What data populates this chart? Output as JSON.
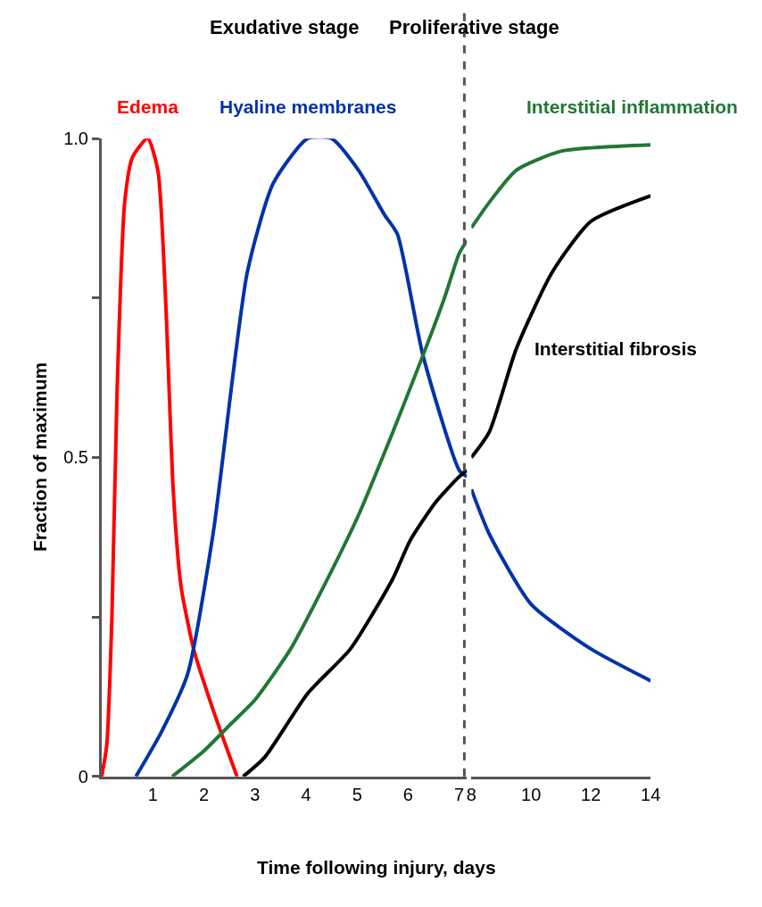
{
  "chart_data": [
    {
      "type": "line",
      "ylabel": "Fraction of maximum",
      "xlabel": "Time following injury, days",
      "annotations": [
        "Exudative stage"
      ],
      "xlim": [
        0,
        7.15
      ],
      "xticks": [
        1,
        2,
        3,
        4,
        5,
        6,
        7
      ],
      "ylim": [
        0,
        1
      ],
      "yticks": [
        0,
        {
          "value": 0.25,
          "label": null
        },
        {
          "value": 0.5,
          "label": "0.5"
        },
        {
          "value": 0.75,
          "label": null
        },
        {
          "value": 1,
          "label": "1.0"
        }
      ],
      "grid": false,
      "legend": false,
      "ref_lines": [
        {
          "axis": "x",
          "value": 7.1,
          "label": null,
          "color": "#555555",
          "line_style": "dashed"
        }
      ],
      "series": [
        {
          "name": "Edema",
          "color": "#ff0000",
          "x": [
            0,
            0.1,
            0.2,
            0.3,
            0.45,
            0.6,
            0.9,
            1.1,
            1.25,
            1.4,
            1.55,
            1.8,
            2.2,
            2.65
          ],
          "values": [
            0,
            0.05,
            0.25,
            0.6,
            0.9,
            0.97,
            1.0,
            0.95,
            0.75,
            0.45,
            0.3,
            0.2,
            0.1,
            0
          ]
        },
        {
          "name": "Hyaline membranes",
          "color": "#0033aa",
          "x": [
            0.67,
            1.17,
            1.68,
            2.18,
            2.85,
            3.36,
            4.03,
            4.5,
            5.03,
            5.54,
            5.79,
            6.29,
            7.0,
            7.15
          ],
          "values": [
            0,
            0.07,
            0.16,
            0.38,
            0.79,
            0.93,
            1.0,
            1.0,
            0.95,
            0.88,
            0.85,
            0.66,
            0.48,
            0.47
          ]
        },
        {
          "color": "#227733",
          "x": [
            1.38,
            2.0,
            2.5,
            3.0,
            3.7,
            4.36,
            5.03,
            5.7,
            6.29,
            6.71,
            7.0,
            7.15
          ],
          "values": [
            0,
            0.04,
            0.08,
            0.12,
            0.2,
            0.3,
            0.41,
            0.54,
            0.66,
            0.75,
            0.82,
            0.84
          ]
        },
        {
          "color": "#000000",
          "x": [
            2.77,
            3.19,
            4.03,
            4.87,
            5.7,
            6.04,
            6.54,
            7.0,
            7.15
          ],
          "values": [
            0,
            0.03,
            0.13,
            0.2,
            0.31,
            0.37,
            0.43,
            0.47,
            0.48
          ]
        }
      ]
    },
    {
      "type": "line",
      "annotations": [
        "Proliferative stage"
      ],
      "xlim": [
        8,
        14
      ],
      "xticks": [
        8,
        10,
        12,
        14
      ],
      "ylim": [
        0,
        1
      ],
      "tick_labels": "x",
      "grid": false,
      "legend": false,
      "series": [
        {
          "color": "#0033aa",
          "x": [
            8,
            8.6,
            10,
            12,
            14
          ],
          "values": [
            0.45,
            0.38,
            0.27,
            0.2,
            0.15
          ]
        },
        {
          "name": "Interstitial inflammation",
          "color": "#227733",
          "x": [
            8,
            8.6,
            9.5,
            11,
            14
          ],
          "values": [
            0.86,
            0.9,
            0.95,
            0.98,
            0.99
          ]
        },
        {
          "name": "Interstitial fibrosis",
          "color": "#000000",
          "x": [
            8,
            8.6,
            9.5,
            10.7,
            12,
            14
          ],
          "values": [
            0.5,
            0.54,
            0.67,
            0.79,
            0.87,
            0.91
          ]
        }
      ]
    }
  ]
}
